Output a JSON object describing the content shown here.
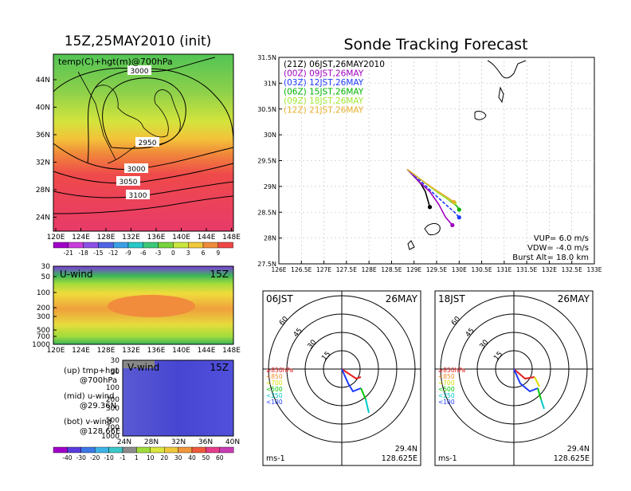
{
  "left": {
    "title": "15Z,25MAY2010 (init)",
    "map_label": "temp(C)+hgt(m)@700hPa",
    "map_lat_ticks": [
      "44N",
      "40N",
      "36N",
      "32N",
      "28N",
      "24N"
    ],
    "map_lon_ticks": [
      "120E",
      "124E",
      "128E",
      "132E",
      "136E",
      "140E",
      "144E",
      "148E"
    ],
    "contour_labels": [
      "3000",
      "2950",
      "3000",
      "3050",
      "3100"
    ],
    "temp_colorbar": [
      "-21",
      "-18",
      "-15",
      "-12",
      "-9",
      "-6",
      "-3",
      "0",
      "3",
      "6",
      "9"
    ],
    "uwind_label": "U-wind",
    "uwind_time": "15Z",
    "pressure_ticks": [
      "30",
      "50",
      "100",
      "200",
      "300",
      "500",
      "700",
      "1000"
    ],
    "uwind_lon_ticks": [
      "120E",
      "124E",
      "128E",
      "132E",
      "136E",
      "140E",
      "144E",
      "148E"
    ],
    "vwind_label": "V-wind",
    "vwind_time": "15Z",
    "vwind_lat_ticks": [
      "24N",
      "28N",
      "32N",
      "36N",
      "40N"
    ],
    "wind_colorbar": [
      "-40",
      "-30",
      "-20",
      "-10",
      "-1",
      "1",
      "10",
      "20",
      "30",
      "40",
      "50",
      "60"
    ],
    "legend": {
      "up": "(up) tmp+hgt",
      "up2": "@700hPa",
      "mid": "(mid) u-wind",
      "mid2": "@29.36N",
      "bot": "(bot) v-wind",
      "bot2": "@128.66E"
    }
  },
  "right": {
    "title": "Sonde Tracking Forecast",
    "track_legend": [
      {
        "text": "(21Z) 06JST,26MAY2010",
        "color": "#000000"
      },
      {
        "text": "(00Z) 09JST,26MAY",
        "color": "#a000c0"
      },
      {
        "text": "(03Z) 12JST,26MAY",
        "color": "#1e3cff"
      },
      {
        "text": "(06Z) 15JST,26MAY",
        "color": "#00b400"
      },
      {
        "text": "(09Z) 18JST,26MAY",
        "color": "#a0e632"
      },
      {
        "text": "(12Z) 21JST,26MAY",
        "color": "#e6af2d"
      }
    ],
    "params": {
      "vup": "VUP=  6.0 m/s",
      "vdw": "VDW=  -4.0 m/s",
      "burst": "Burst Alt= 18.0 km"
    },
    "lat_ticks": [
      "31.5N",
      "31N",
      "30.5N",
      "30N",
      "29.5N",
      "29N",
      "28.5N",
      "28N",
      "27.5N"
    ],
    "lon_ticks": [
      "126E",
      "126.5E",
      "127E",
      "127.5E",
      "128E",
      "128.5E",
      "129E",
      "129.5E",
      "130E",
      "130.5E",
      "131E",
      "131.5E",
      "132E",
      "132.5E",
      "133E"
    ],
    "hodo_left": {
      "time": "06JST",
      "date": "26MAY",
      "lat": "29.4N",
      "lon": "128.625E",
      "unit": "ms-1"
    },
    "hodo_right": {
      "time": "18JST",
      "date": "26MAY",
      "lat": "29.4N",
      "lon": "128.625E",
      "unit": "ms-1"
    },
    "ring_labels": [
      "15",
      "30",
      "45",
      "60"
    ],
    "level_legend": [
      {
        "text": "≥850hPa",
        "color": "#e61e1e"
      },
      {
        "text": "<850",
        "color": "#f08c28"
      },
      {
        "text": "<700",
        "color": "#dcdc00"
      },
      {
        "text": "<500",
        "color": "#00c800"
      },
      {
        "text": "<250",
        "color": "#00c8c8"
      },
      {
        "text": "<100",
        "color": "#1e3cff"
      }
    ]
  },
  "chart_data": [
    {
      "type": "line",
      "title": "Sonde Tracking Forecast",
      "xlim": [
        126,
        133
      ],
      "ylim": [
        27.5,
        31.5
      ],
      "series": [
        {
          "name": "(21Z) 06JST,26MAY2010",
          "x": [
            128.85,
            129.0,
            129.15,
            129.25,
            129.3,
            129.35
          ],
          "y": [
            29.33,
            29.2,
            29.05,
            28.9,
            28.75,
            28.6
          ]
        },
        {
          "name": "(00Z) 09JST,26MAY",
          "x": [
            128.85,
            129.1,
            129.35,
            129.55,
            129.7,
            129.85
          ],
          "y": [
            29.33,
            29.1,
            28.9,
            28.65,
            28.4,
            28.25
          ]
        },
        {
          "name": "(03Z) 12JST,26MAY",
          "x": [
            128.85,
            129.15,
            129.45,
            129.7,
            129.9,
            130.0
          ],
          "y": [
            29.33,
            29.1,
            28.85,
            28.65,
            28.5,
            28.4
          ]
        },
        {
          "name": "(06Z) 15JST,26MAY",
          "x": [
            128.85,
            129.2,
            129.5,
            129.75,
            129.95,
            130.0
          ],
          "y": [
            29.33,
            29.1,
            28.9,
            28.75,
            28.62,
            28.55
          ]
        },
        {
          "name": "(09Z) 18JST,26MAY",
          "x": [
            128.85,
            129.2,
            129.5,
            129.75,
            129.9
          ],
          "y": [
            29.33,
            29.1,
            28.9,
            28.75,
            28.68
          ]
        },
        {
          "name": "(12Z) 21JST,26MAY",
          "x": [
            128.85,
            129.2,
            129.5,
            129.75,
            129.88
          ],
          "y": [
            29.33,
            29.1,
            28.92,
            28.78,
            28.7
          ]
        }
      ]
    }
  ]
}
